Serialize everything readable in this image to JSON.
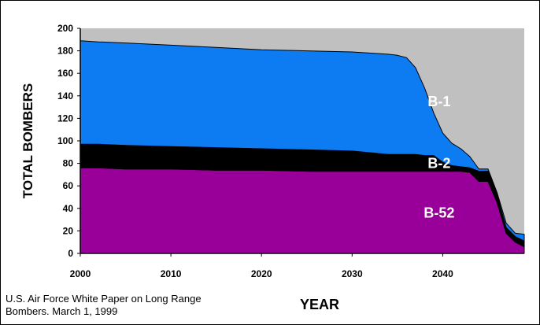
{
  "chart_data": {
    "type": "area",
    "stacked": true,
    "xlabel": "YEAR",
    "ylabel": "TOTAL BOMBERS",
    "xlim": [
      2000,
      2049
    ],
    "ylim": [
      0,
      200
    ],
    "xticks": [
      2000,
      2010,
      2020,
      2030,
      2040
    ],
    "yticks": [
      0,
      20,
      40,
      60,
      80,
      100,
      120,
      140,
      160,
      180,
      200
    ],
    "grid": false,
    "background_color": "#c0c0c0",
    "x": [
      2000,
      2002,
      2005,
      2010,
      2015,
      2020,
      2025,
      2030,
      2034,
      2035,
      2036,
      2037,
      2038,
      2039,
      2040,
      2041,
      2042,
      2043,
      2044,
      2045,
      2046,
      2047,
      2048,
      2049
    ],
    "series": [
      {
        "name": "B-52",
        "color": "#990099",
        "values": [
          76,
          76,
          75,
          75,
          74,
          74,
          73,
          73,
          73,
          73,
          73,
          73,
          73,
          73,
          73,
          73,
          73,
          72,
          64,
          64,
          45,
          18,
          10,
          6
        ]
      },
      {
        "name": "B-2",
        "color": "#000000",
        "values": [
          21,
          21,
          21,
          20,
          20,
          19,
          19,
          18,
          15,
          15,
          15,
          15,
          14,
          14,
          8,
          5,
          4,
          4,
          9,
          9,
          7,
          5,
          5,
          5
        ]
      },
      {
        "name": "B-1",
        "color": "#0d7bf2",
        "values": [
          92,
          91,
          91,
          90,
          89,
          88,
          88,
          88,
          89,
          88,
          86,
          77,
          60,
          38,
          26,
          20,
          16,
          10,
          2,
          2,
          2,
          4,
          3,
          6
        ]
      }
    ],
    "annotations": [
      {
        "text": "B-1",
        "x": 2041,
        "y": 135
      },
      {
        "text": "B-2",
        "x": 2041,
        "y": 80
      },
      {
        "text": "B-52",
        "x": 2041,
        "y": 36
      }
    ]
  },
  "source_note": "U.S. Air Force White Paper on Long Range Bombers. March 1, 1999"
}
